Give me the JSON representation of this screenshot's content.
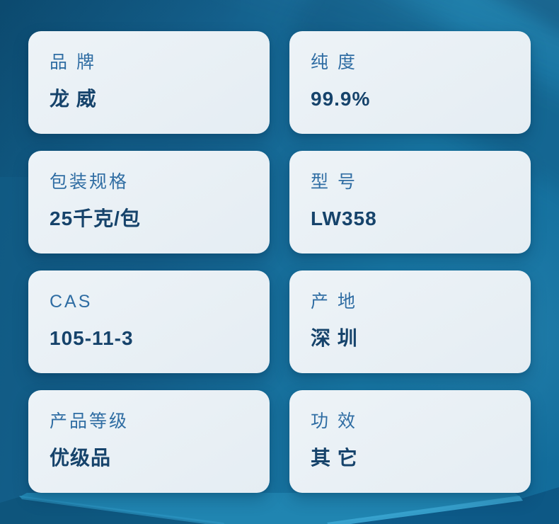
{
  "theme": {
    "background_blue": "#14608c",
    "card_background": "#e9f0f5",
    "label_color": "#2f6da3",
    "value_color": "#16436b",
    "podium_highlight": "#3aa5d1"
  },
  "specs": {
    "cards": [
      {
        "label": "品 牌",
        "value": "龙 威"
      },
      {
        "label": "纯 度",
        "value": "99.9%"
      },
      {
        "label": "包装规格",
        "value": "25千克/包"
      },
      {
        "label": "型 号",
        "value": "LW358"
      },
      {
        "label": "CAS",
        "value": "105-11-3"
      },
      {
        "label": "产 地",
        "value": "深 圳"
      },
      {
        "label": "产品等级",
        "value": "优级品"
      },
      {
        "label": "功 效",
        "value": "其 它"
      }
    ]
  }
}
